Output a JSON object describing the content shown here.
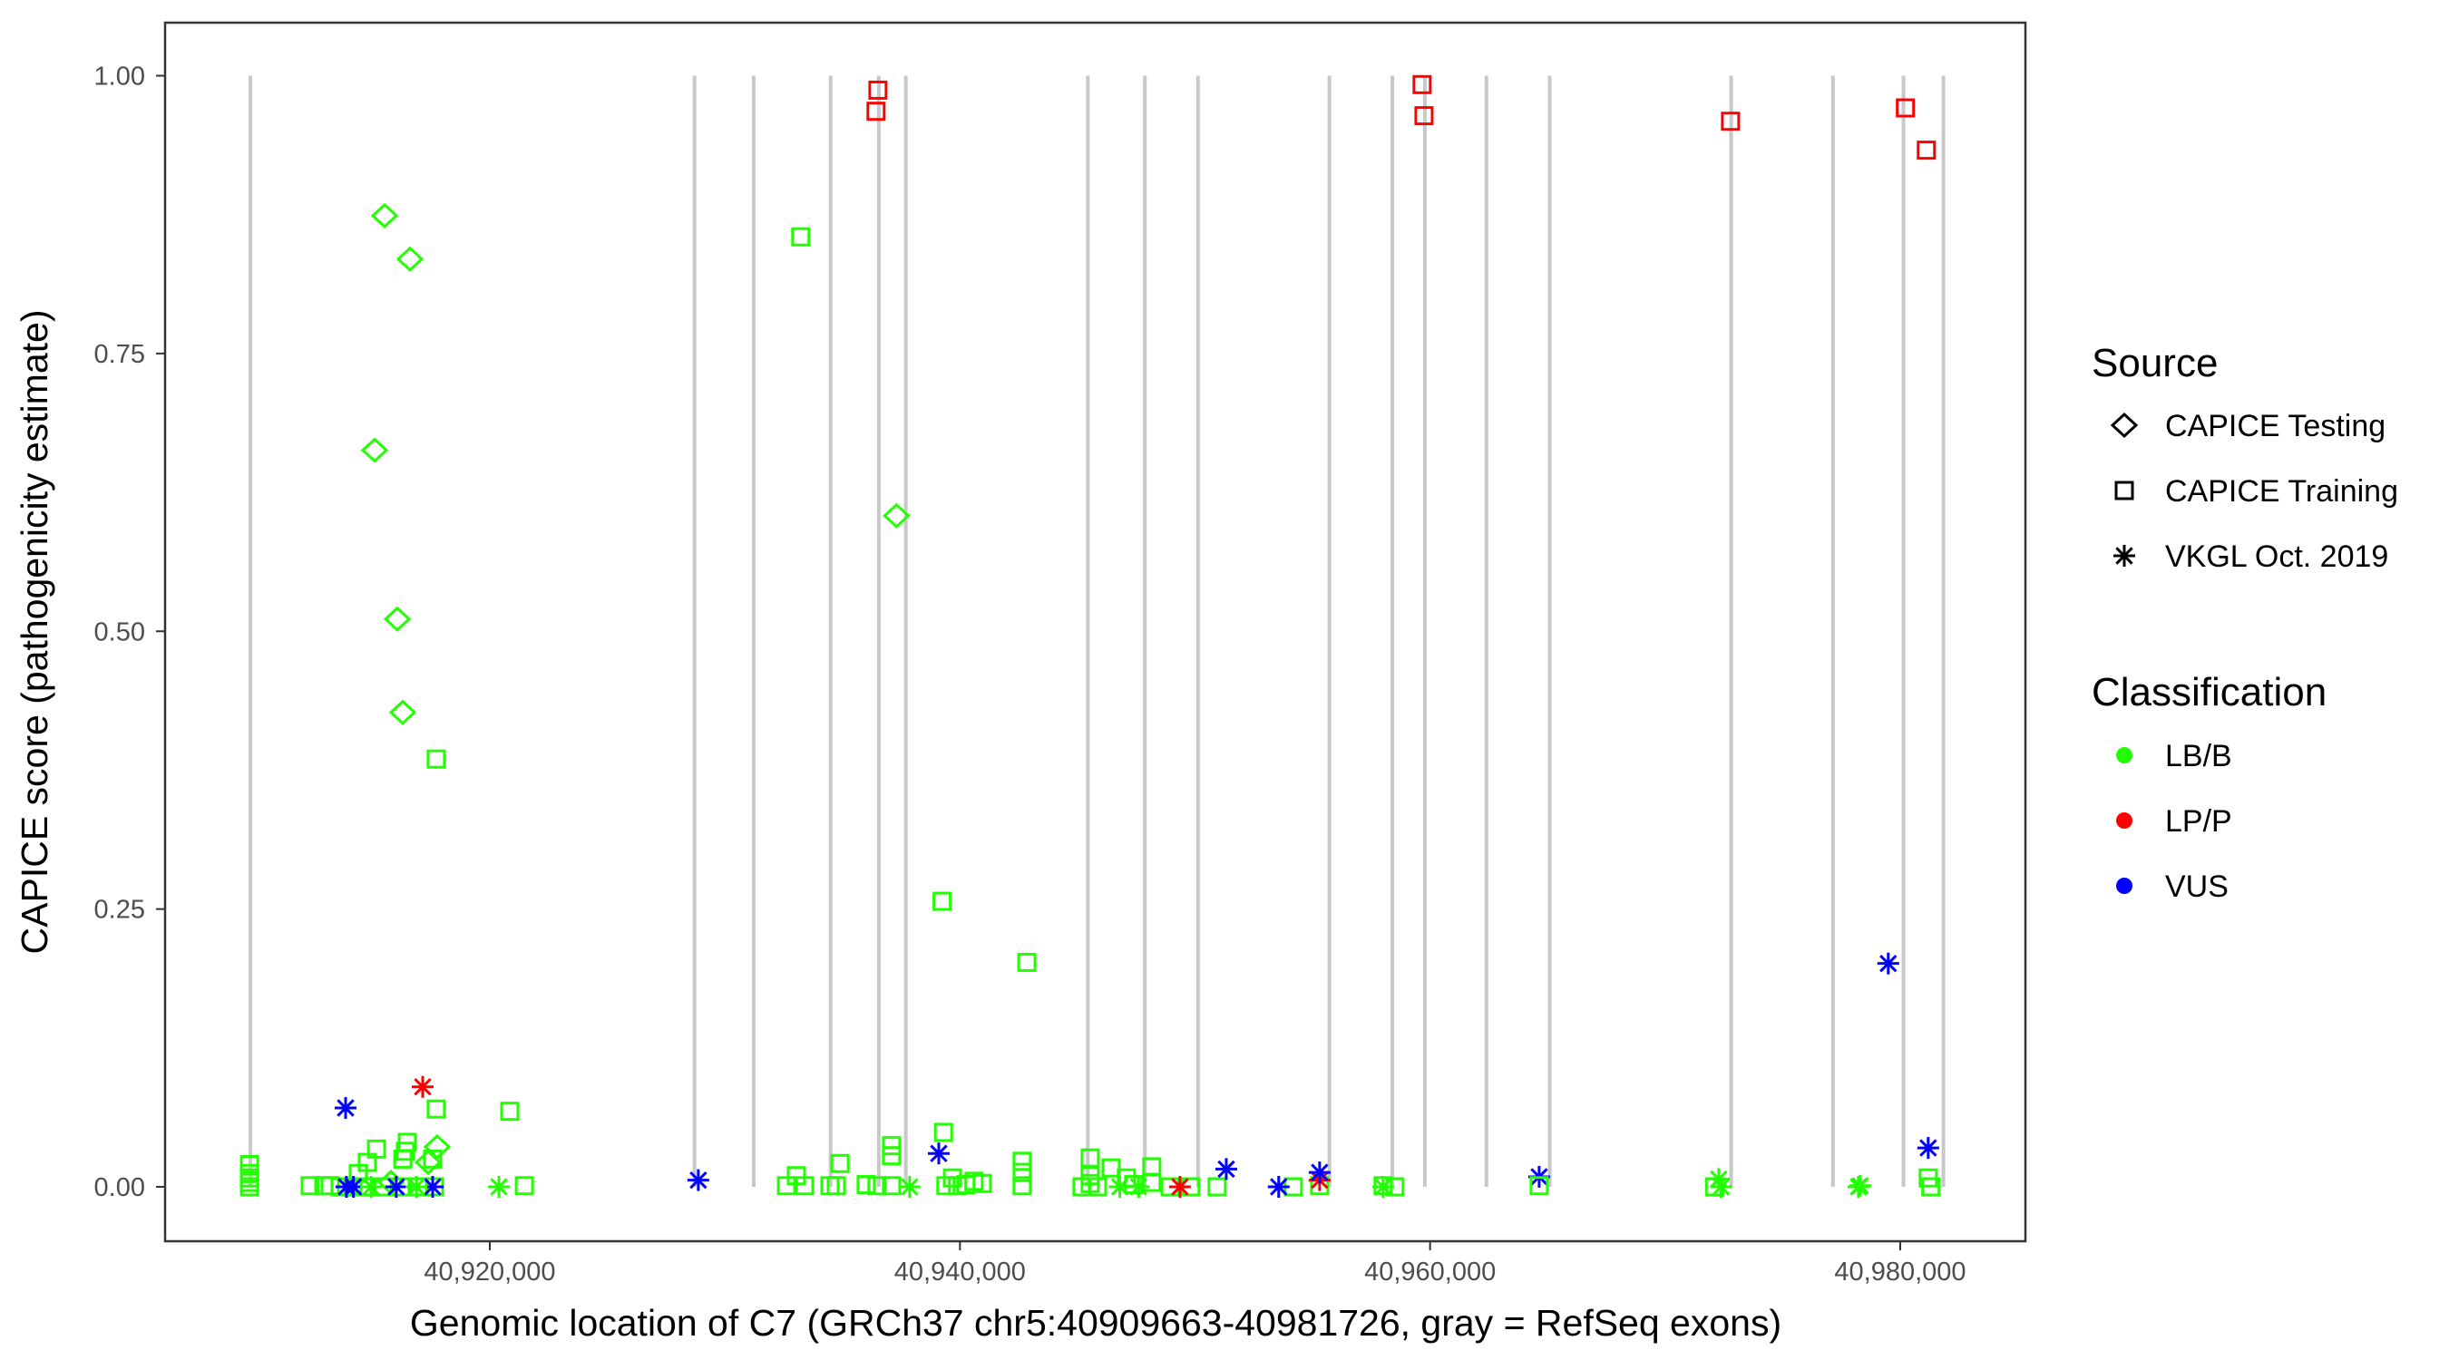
{
  "chart_data": {
    "type": "scatter",
    "xlabel": "Genomic location of C7 (GRCh37 chr5:40909663-40981726, gray = RefSeq exons)",
    "ylabel": "CAPICE score (pathogenicity estimate)",
    "xlim": [
      40907000,
      40984000
    ],
    "ylim": [
      -0.045,
      1.045
    ],
    "x_ticks": [
      40920000,
      40940000,
      40960000,
      40980000
    ],
    "x_tick_labels": [
      "40,920,000",
      "40,940,000",
      "40,960,000",
      "40,980,000"
    ],
    "y_ticks": [
      0,
      0.25,
      0.5,
      0.75,
      1.0
    ],
    "y_tick_labels": [
      "0.00",
      "0.25",
      "0.50",
      "0.75",
      "1.00"
    ],
    "grid": false,
    "legend_placement": "right",
    "legend": {
      "source_title": "Source",
      "sources": [
        {
          "key": "testing",
          "label": "CAPICE Testing",
          "shape": "diamond"
        },
        {
          "key": "training",
          "label": "CAPICE Training",
          "shape": "square"
        },
        {
          "key": "vkgl",
          "label": "VKGL Oct. 2019",
          "shape": "asterisk"
        }
      ],
      "class_title": "Classification",
      "classes": [
        {
          "key": "LB/B",
          "label": "LB/B",
          "color": "#22FF00"
        },
        {
          "key": "LP/P",
          "label": "LP/P",
          "color": "#FF0000"
        },
        {
          "key": "VUS",
          "label": "VUS",
          "color": "#0000FF"
        }
      ]
    },
    "exon_color": "#C8C8C8",
    "exons": [
      [
        40909740,
        40909800
      ],
      [
        40928630,
        40928720
      ],
      [
        40931150,
        40931230
      ],
      [
        40934420,
        40934520
      ],
      [
        40936470,
        40936550
      ],
      [
        40937620,
        40937720
      ],
      [
        40945360,
        40945480
      ],
      [
        40947790,
        40947930
      ],
      [
        40950050,
        40950130
      ],
      [
        40955640,
        40955740
      ],
      [
        40958320,
        40958460
      ],
      [
        40959700,
        40959790
      ],
      [
        40962320,
        40962400
      ],
      [
        40965010,
        40965110
      ],
      [
        40972730,
        40972830
      ],
      [
        40977060,
        40977140
      ],
      [
        40980060,
        40980160
      ],
      [
        40981760,
        40981880
      ]
    ],
    "points_fields": [
      "position",
      "score",
      "source",
      "classification"
    ],
    "points": [
      [
        40909780,
        0.02,
        "training",
        "LB/B"
      ],
      [
        40909780,
        0.012,
        "training",
        "LB/B"
      ],
      [
        40909780,
        0.008,
        "training",
        "LB/B"
      ],
      [
        40909780,
        0.004,
        "training",
        "LB/B"
      ],
      [
        40909780,
        0.0,
        "training",
        "LB/B"
      ],
      [
        40912360,
        0.001,
        "training",
        "LB/B"
      ],
      [
        40912940,
        0.001,
        "training",
        "LB/B"
      ],
      [
        40913210,
        0.001,
        "training",
        "LB/B"
      ],
      [
        40913630,
        0.0,
        "training",
        "LB/B"
      ],
      [
        40914170,
        0.0,
        "training",
        "LB/B"
      ],
      [
        40914670,
        0.0,
        "training",
        "LB/B"
      ],
      [
        40915450,
        0.0,
        "training",
        "LB/B"
      ],
      [
        40916220,
        0.0,
        "training",
        "LB/B"
      ],
      [
        40916990,
        0.0,
        "training",
        "LB/B"
      ],
      [
        40917650,
        0.0,
        "training",
        "LB/B"
      ],
      [
        40914406,
        0.012,
        "training",
        "LB/B"
      ],
      [
        40914790,
        0.022,
        "training",
        "LB/B"
      ],
      [
        40915180,
        0.034,
        "training",
        "LB/B"
      ],
      [
        40916300,
        0.025,
        "training",
        "LB/B"
      ],
      [
        40916410,
        0.032,
        "training",
        "LB/B"
      ],
      [
        40916490,
        0.04,
        "training",
        "LB/B"
      ],
      [
        40917570,
        0.025,
        "training",
        "LB/B"
      ],
      [
        40917720,
        0.07,
        "training",
        "LB/B"
      ],
      [
        40917720,
        0.385,
        "training",
        "LB/B"
      ],
      [
        40920850,
        0.068,
        "training",
        "LB/B"
      ],
      [
        40921470,
        0.001,
        "training",
        "LB/B"
      ],
      [
        40915525,
        0.874,
        "testing",
        "LB/B"
      ],
      [
        40916605,
        0.835,
        "testing",
        "LB/B"
      ],
      [
        40915100,
        0.663,
        "testing",
        "LB/B"
      ],
      [
        40916065,
        0.511,
        "testing",
        "LB/B"
      ],
      [
        40916296,
        0.427,
        "testing",
        "LB/B"
      ],
      [
        40917760,
        0.036,
        "testing",
        "LB/B"
      ],
      [
        40917380,
        0.022,
        "testing",
        "LB/B"
      ],
      [
        40915800,
        0.004,
        "testing",
        "LB/B"
      ],
      [
        40913866,
        0.071,
        "vkgl",
        "VUS"
      ],
      [
        40913900,
        0.0,
        "vkgl",
        "VUS"
      ],
      [
        40914200,
        0.0,
        "vkgl",
        "VUS"
      ],
      [
        40916020,
        0.0,
        "vkgl",
        "VUS"
      ],
      [
        40917570,
        0.0,
        "vkgl",
        "VUS"
      ],
      [
        40914950,
        0.0,
        "vkgl",
        "LB/B"
      ],
      [
        40916880,
        0.0,
        "vkgl",
        "LB/B"
      ],
      [
        40920390,
        0.0,
        "vkgl",
        "LB/B"
      ],
      [
        40917145,
        0.09,
        "vkgl",
        "LP/P"
      ],
      [
        40928870,
        0.006,
        "vkgl",
        "VUS"
      ],
      [
        40932620,
        0.001,
        "training",
        "LB/B"
      ],
      [
        40933040,
        0.01,
        "training",
        "LB/B"
      ],
      [
        40933390,
        0.001,
        "training",
        "LB/B"
      ],
      [
        40933226,
        0.855,
        "training",
        "LB/B"
      ],
      [
        40934470,
        0.001,
        "training",
        "LB/B"
      ],
      [
        40934740,
        0.001,
        "training",
        "LB/B"
      ],
      [
        40934900,
        0.021,
        "training",
        "LB/B"
      ],
      [
        40936010,
        0.002,
        "training",
        "LB/B"
      ],
      [
        40936470,
        0.001,
        "training",
        "LB/B"
      ],
      [
        40937090,
        0.001,
        "training",
        "LB/B"
      ],
      [
        40937090,
        0.028,
        "training",
        "LB/B"
      ],
      [
        40937090,
        0.037,
        "training",
        "LB/B"
      ],
      [
        40937860,
        0.0,
        "vkgl",
        "LB/B"
      ],
      [
        40937300,
        0.604,
        "testing",
        "LB/B"
      ],
      [
        40939100,
        0.03,
        "vkgl",
        "VUS"
      ],
      [
        40939240,
        0.257,
        "training",
        "LB/B"
      ],
      [
        40939300,
        0.049,
        "training",
        "LB/B"
      ],
      [
        40939400,
        0.001,
        "training",
        "LB/B"
      ],
      [
        40939680,
        0.008,
        "training",
        "LB/B"
      ],
      [
        40939900,
        0.001,
        "training",
        "LB/B"
      ],
      [
        40940250,
        0.002,
        "training",
        "LB/B"
      ],
      [
        40940600,
        0.005,
        "training",
        "LB/B"
      ],
      [
        40940950,
        0.003,
        "training",
        "LB/B"
      ],
      [
        40942845,
        0.202,
        "training",
        "LB/B"
      ],
      [
        40942645,
        0.023,
        "training",
        "LB/B"
      ],
      [
        40942645,
        0.013,
        "training",
        "LB/B"
      ],
      [
        40942645,
        0.001,
        "training",
        "LB/B"
      ],
      [
        40945190,
        0.0,
        "training",
        "LB/B"
      ],
      [
        40945540,
        0.026,
        "training",
        "LB/B"
      ],
      [
        40945540,
        0.01,
        "training",
        "LB/B"
      ],
      [
        40945540,
        0.003,
        "training",
        "LB/B"
      ],
      [
        40945850,
        0.0,
        "training",
        "LB/B"
      ],
      [
        40946430,
        0.017,
        "training",
        "LB/B"
      ],
      [
        40947080,
        0.008,
        "training",
        "LB/B"
      ],
      [
        40947390,
        0.002,
        "training",
        "LB/B"
      ],
      [
        40948160,
        0.018,
        "training",
        "LB/B"
      ],
      [
        40948160,
        0.004,
        "training",
        "LB/B"
      ],
      [
        40948940,
        0.0,
        "training",
        "LB/B"
      ],
      [
        40949820,
        0.0,
        "training",
        "LB/B"
      ],
      [
        40950940,
        0.0,
        "training",
        "LB/B"
      ],
      [
        40954180,
        0.0,
        "training",
        "LB/B"
      ],
      [
        40955300,
        0.001,
        "training",
        "LB/B"
      ],
      [
        40958000,
        0.0,
        "vkgl",
        "LB/B"
      ],
      [
        40958000,
        0.001,
        "training",
        "LB/B"
      ],
      [
        40958500,
        0.0,
        "training",
        "LB/B"
      ],
      [
        40946800,
        0.0,
        "vkgl",
        "LB/B"
      ],
      [
        40947600,
        0.0,
        "vkgl",
        "LB/B"
      ],
      [
        40949360,
        0.0,
        "vkgl",
        "LP/P"
      ],
      [
        40955300,
        0.006,
        "vkgl",
        "LP/P"
      ],
      [
        40951330,
        0.016,
        "vkgl",
        "VUS"
      ],
      [
        40953560,
        0.0,
        "vkgl",
        "VUS"
      ],
      [
        40955300,
        0.013,
        "vkgl",
        "VUS"
      ],
      [
        40936510,
        0.987,
        "training",
        "LP/P"
      ],
      [
        40936430,
        0.968,
        "training",
        "LP/P"
      ],
      [
        40959660,
        0.992,
        "training",
        "LP/P"
      ],
      [
        40959740,
        0.964,
        "training",
        "LP/P"
      ],
      [
        40972780,
        0.959,
        "training",
        "LP/P"
      ],
      [
        40980220,
        0.971,
        "training",
        "LP/P"
      ],
      [
        40981110,
        0.933,
        "training",
        "LP/P"
      ],
      [
        40964640,
        0.009,
        "vkgl",
        "VUS"
      ],
      [
        40964640,
        0.001,
        "training",
        "LB/B"
      ],
      [
        40972100,
        0.0,
        "training",
        "LB/B"
      ],
      [
        40972280,
        0.007,
        "vkgl",
        "LB/B"
      ],
      [
        40972380,
        0.0,
        "vkgl",
        "LB/B"
      ],
      [
        40978220,
        0.0,
        "vkgl",
        "LB/B"
      ],
      [
        40978300,
        0.001,
        "vkgl",
        "LB/B"
      ],
      [
        40979490,
        0.201,
        "vkgl",
        "VUS"
      ],
      [
        40981190,
        0.035,
        "vkgl",
        "VUS"
      ],
      [
        40981190,
        0.008,
        "training",
        "LB/B"
      ],
      [
        40981300,
        0.0,
        "training",
        "LB/B"
      ]
    ]
  }
}
